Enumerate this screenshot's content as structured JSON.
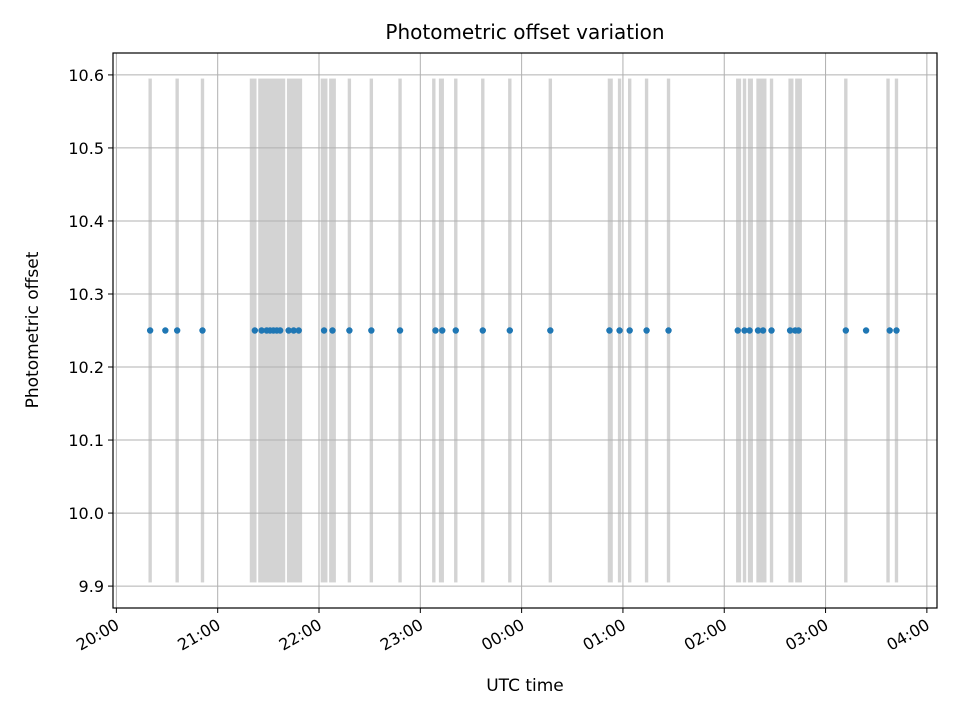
{
  "chart_data": {
    "type": "scatter",
    "title": "Photometric offset variation",
    "xlabel": "UTC time",
    "ylabel": "Photometric offset",
    "grid": true,
    "ylim": [
      9.87,
      10.63
    ],
    "yticks": [
      9.9,
      10.0,
      10.1,
      10.2,
      10.3,
      10.4,
      10.5,
      10.6
    ],
    "ytick_labels": [
      "9.9",
      "10.0",
      "10.1",
      "10.2",
      "10.3",
      "10.4",
      "10.5",
      "10.6"
    ],
    "xlim": [
      "19:58",
      "04:06"
    ],
    "xticks": [
      "20:00",
      "21:00",
      "22:00",
      "23:00",
      "00:00",
      "01:00",
      "02:00",
      "03:00",
      "04:00"
    ],
    "xtick_labels": [
      "20:00",
      "21:00",
      "22:00",
      "23:00",
      "00:00",
      "01:00",
      "02:00",
      "03:00",
      "04:00"
    ],
    "points": {
      "color": "#1f77b4",
      "y": 10.25,
      "x": [
        "20:20",
        "20:29",
        "20:36",
        "20:51",
        "21:22",
        "21:26",
        "21:29",
        "21:31",
        "21:33",
        "21:35",
        "21:37",
        "21:42",
        "21:45",
        "21:48",
        "22:03",
        "22:08",
        "22:18",
        "22:31",
        "22:48",
        "23:09",
        "23:13",
        "23:21",
        "23:37",
        "23:53",
        "00:17",
        "00:52",
        "00:58",
        "01:04",
        "01:14",
        "01:27",
        "02:08",
        "02:12",
        "02:15",
        "02:20",
        "02:23",
        "02:28",
        "02:39",
        "02:42",
        "02:44",
        "03:12",
        "03:24",
        "03:38",
        "03:42"
      ]
    },
    "shading": {
      "color": "#d3d3d3",
      "y_range": [
        9.905,
        10.595
      ],
      "bands": [
        [
          "20:19",
          "20:21"
        ],
        [
          "20:35",
          "20:37"
        ],
        [
          "20:50",
          "20:52"
        ],
        [
          "21:19",
          "21:23"
        ],
        [
          "21:24",
          "21:40"
        ],
        [
          "21:41",
          "21:50"
        ],
        [
          "22:01",
          "22:05"
        ],
        [
          "22:06",
          "22:10"
        ],
        [
          "22:17",
          "22:19"
        ],
        [
          "22:30",
          "22:32"
        ],
        [
          "22:47",
          "22:49"
        ],
        [
          "23:07",
          "23:09"
        ],
        [
          "23:11",
          "23:14"
        ],
        [
          "23:20",
          "23:22"
        ],
        [
          "23:36",
          "23:38"
        ],
        [
          "23:52",
          "23:54"
        ],
        [
          "00:16",
          "00:18"
        ],
        [
          "00:51",
          "00:54"
        ],
        [
          "00:57",
          "00:59"
        ],
        [
          "01:03",
          "01:05"
        ],
        [
          "01:13",
          "01:15"
        ],
        [
          "01:26",
          "01:28"
        ],
        [
          "02:07",
          "02:10"
        ],
        [
          "02:11",
          "02:13"
        ],
        [
          "02:14",
          "02:17"
        ],
        [
          "02:19",
          "02:25"
        ],
        [
          "02:27",
          "02:29"
        ],
        [
          "02:38",
          "02:41"
        ],
        [
          "02:42",
          "02:46"
        ],
        [
          "03:11",
          "03:13"
        ],
        [
          "03:36",
          "03:38"
        ],
        [
          "03:41",
          "03:43"
        ]
      ]
    }
  }
}
